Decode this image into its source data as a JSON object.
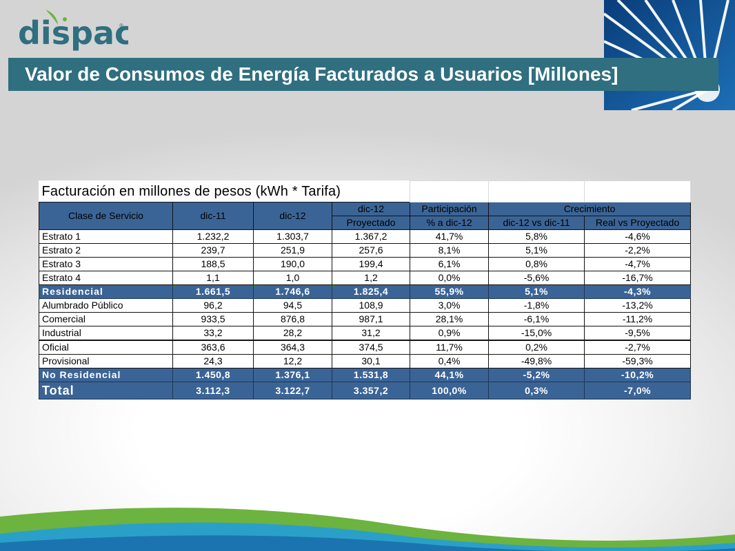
{
  "logo": {
    "text": "dispac",
    "mark": "®"
  },
  "title": "Valor de Consumos de Energía Facturados a Usuarios [Millones]",
  "colors": {
    "title_bar": "#2f6f7f",
    "header": "#3b6496",
    "logo": "#2f6f7f",
    "wave": "#2aa0c8",
    "green": "#6db33f"
  },
  "table": {
    "caption": "Facturación en millones de pesos (kWh * Tarifa)",
    "headers": {
      "clase": "Clase de Servicio",
      "dic11": "dic-11",
      "dic12": "dic-12",
      "proy_line1": "dic-12",
      "proy_line2": "Proyectado",
      "part_line1": "Participación",
      "part_line2": "% a dic-12",
      "crecimiento": "Crecimiento",
      "crec_a": "dic-12 vs dic-11",
      "crec_b": "Real vs Proyectado"
    },
    "rows": [
      {
        "label": "Estrato 1",
        "dic11": "1.232,2",
        "dic12": "1.303,7",
        "proy": "1.367,2",
        "part": "41,7%",
        "crec_a": "5,8%",
        "crec_b": "-4,6%"
      },
      {
        "label": "Estrato 2",
        "dic11": "239,7",
        "dic12": "251,9",
        "proy": "257,6",
        "part": "8,1%",
        "crec_a": "5,1%",
        "crec_b": "-2,2%"
      },
      {
        "label": "Estrato 3",
        "dic11": "188,5",
        "dic12": "190,0",
        "proy": "199,4",
        "part": "6,1%",
        "crec_a": "0,8%",
        "crec_b": "-4,7%"
      },
      {
        "label": "Estrato 4",
        "dic11": "1,1",
        "dic12": "1,0",
        "proy": "1,2",
        "part": "0,0%",
        "crec_a": "-5,6%",
        "crec_b": "-16,7%"
      },
      {
        "label": "Residencial",
        "dic11": "1.661,5",
        "dic12": "1.746,6",
        "proy": "1.825,4",
        "part": "55,9%",
        "crec_a": "5,1%",
        "crec_b": "-4,3%"
      },
      {
        "label": "Alumbrado Público",
        "dic11": "96,2",
        "dic12": "94,5",
        "proy": "108,9",
        "part": "3,0%",
        "crec_a": "-1,8%",
        "crec_b": "-13,2%"
      },
      {
        "label": "Comercial",
        "dic11": "933,5",
        "dic12": "876,8",
        "proy": "987,1",
        "part": "28,1%",
        "crec_a": "-6,1%",
        "crec_b": "-11,2%"
      },
      {
        "label": "Industrial",
        "dic11": "33,2",
        "dic12": "28,2",
        "proy": "31,2",
        "part": "0,9%",
        "crec_a": "-15,0%",
        "crec_b": "-9,5%"
      },
      {
        "label": "Oficial",
        "dic11": "363,6",
        "dic12": "364,3",
        "proy": "374,5",
        "part": "11,7%",
        "crec_a": "0,2%",
        "crec_b": "-2,7%"
      },
      {
        "label": "Provisional",
        "dic11": "24,3",
        "dic12": "12,2",
        "proy": "30,1",
        "part": "0,4%",
        "crec_a": "-49,8%",
        "crec_b": "-59,3%"
      },
      {
        "label": "No Residencial",
        "dic11": "1.450,8",
        "dic12": "1.376,1",
        "proy": "1.531,8",
        "part": "44,1%",
        "crec_a": "-5,2%",
        "crec_b": "-10,2%"
      },
      {
        "label": "Total",
        "dic11": "3.112,3",
        "dic12": "3.122,7",
        "proy": "3.357,2",
        "part": "100,0%",
        "crec_a": "0,3%",
        "crec_b": "-7,0%"
      }
    ]
  }
}
